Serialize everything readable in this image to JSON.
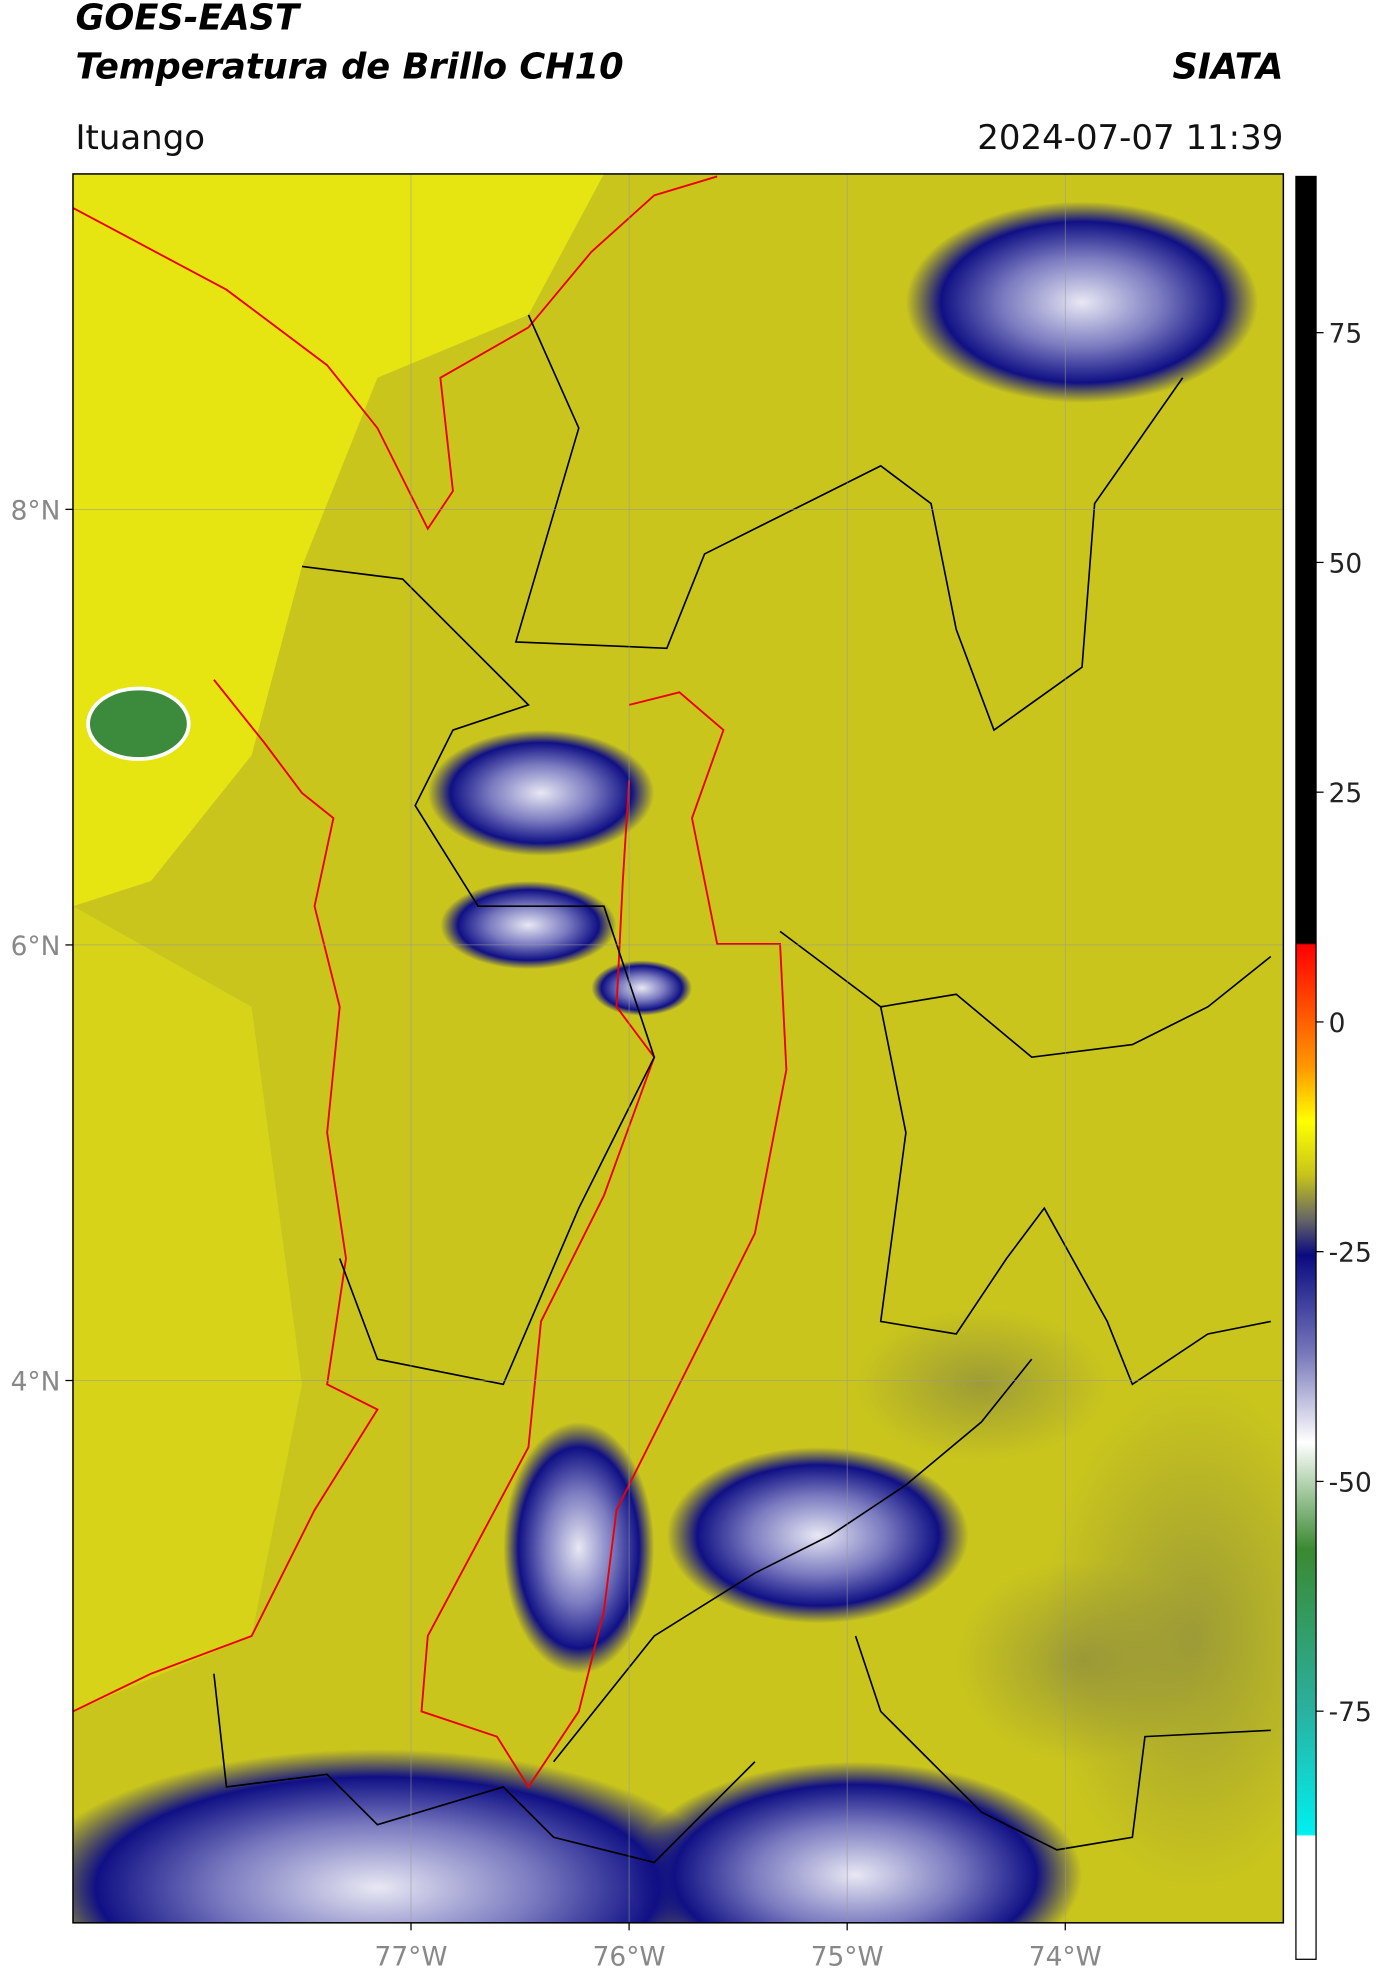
{
  "header": {
    "title": "GOES-EAST",
    "subtitle": "Temperatura de Brillo CH10",
    "source": "SIATA",
    "location": "Ituango",
    "datetime": "2024-07-07 11:39"
  },
  "map": {
    "xlim": [
      -78.55,
      -73.0
    ],
    "ylim": [
      1.51,
      9.54
    ],
    "xticks": [
      {
        "value": -77,
        "label": "77°W"
      },
      {
        "value": -76,
        "label": "76°W"
      },
      {
        "value": -75,
        "label": "75°W"
      },
      {
        "value": -74,
        "label": "74°W"
      }
    ],
    "yticks": [
      {
        "value": 8,
        "label": "8°N"
      },
      {
        "value": 6,
        "label": "6°N"
      },
      {
        "value": 4,
        "label": "4°N"
      }
    ]
  },
  "colorbar": {
    "lim": [
      -102,
      92
    ],
    "ticks": [
      75,
      50,
      25,
      0,
      -25,
      -50,
      -75
    ]
  }
}
